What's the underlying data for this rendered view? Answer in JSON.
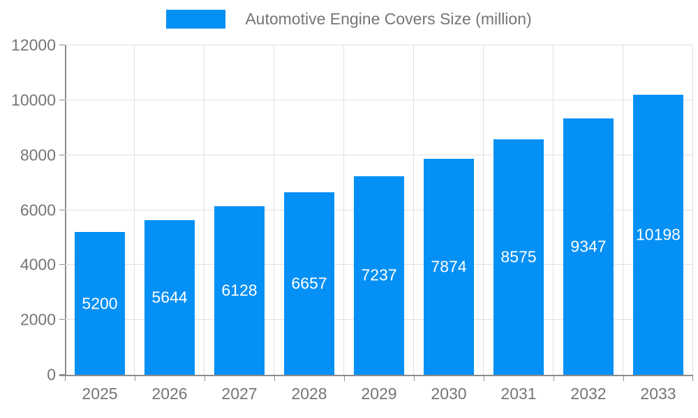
{
  "legend": {
    "label": "Automotive Engine Covers Size (million)"
  },
  "colors": {
    "bar": "#0590F5",
    "axis_text": "#757575",
    "grid": "#e0e0e0",
    "axis_line": "#8c8c8c",
    "value_label": "#ffffff"
  },
  "chart_data": {
    "type": "bar",
    "title": "Automotive Engine Covers Size (million)",
    "categories": [
      "2025",
      "2026",
      "2027",
      "2028",
      "2029",
      "2030",
      "2031",
      "2032",
      "2033"
    ],
    "values": [
      5200,
      5644,
      6128,
      6657,
      7237,
      7874,
      8575,
      9347,
      10198
    ],
    "value_labels": [
      "5200",
      "5644",
      "6128",
      "6657",
      "7237",
      "7874",
      "8575",
      "9347",
      "10198"
    ],
    "xlabel": "",
    "ylabel": "",
    "ylim": [
      0,
      12000
    ],
    "ytick_step": 2000,
    "ytick_labels": [
      "0",
      "2000",
      "4000",
      "6000",
      "8000",
      "10000",
      "12000"
    ],
    "grid": true,
    "legend_position": "top-center",
    "bar_color": "#0590F5",
    "value_labels_inside_bars": true
  }
}
